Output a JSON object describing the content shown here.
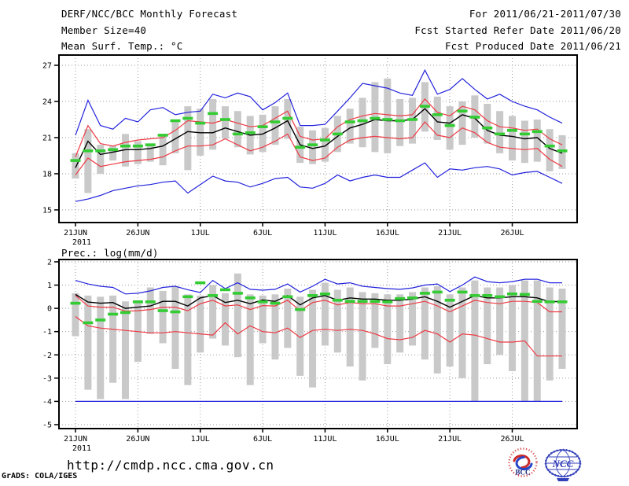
{
  "header": {
    "title": "DERF/NCC/BCC Monthly Forecast",
    "member_size": "Member Size=40",
    "for_range": "For 2011/06/21-2011/07/30",
    "fcst_started": "Fcst Started Refer Date 2011/06/20",
    "fcst_produced": "Fcst Produced Date 2011/06/21"
  },
  "footer": {
    "url": "http://cmdp.ncc.cma.gov.cn",
    "grads_credit": "GrADS: COLA/IGES",
    "logos": [
      {
        "name": "bcc-logo",
        "label": "BCC"
      },
      {
        "name": "ncc-logo",
        "label": "NCC"
      }
    ]
  },
  "colors": {
    "black": "#000000",
    "blue": "#2222dd",
    "red": "#ee3a44",
    "green": "#33cc33",
    "bar": "#c9c9c9",
    "grid": "#999999",
    "bcc_red": "#cc2a2a",
    "bcc_navy": "#1a2a80",
    "ncc_blue": "#3340bb"
  },
  "chart_data": [
    {
      "type": "line",
      "title": "Mean Surf. Temp.: °C",
      "year_label": "2011",
      "n_days": 40,
      "x_tick_labels": [
        "21JUN",
        "26JUN",
        "1JUL",
        "6JUL",
        "11JUL",
        "16JUL",
        "21JUL",
        "26JUL"
      ],
      "x_tick_days": [
        0,
        5,
        10,
        15,
        20,
        25,
        30,
        35
      ],
      "y_ticks": [
        27,
        24,
        21,
        18,
        15
      ],
      "ylim": [
        13.95,
        27.85
      ],
      "grid": true,
      "series": [
        {
          "name": "ensemble-max-line",
          "color": "blue",
          "values": [
            21.2,
            24.1,
            22.0,
            21.7,
            22.6,
            22.3,
            23.3,
            23.5,
            22.9,
            23.1,
            23.2,
            24.6,
            24.3,
            24.7,
            24.4,
            23.3,
            23.9,
            24.7,
            22.0,
            22.0,
            22.1,
            23.2,
            24.3,
            25.5,
            25.3,
            25.1,
            24.7,
            24.5,
            26.6,
            24.6,
            25.0,
            25.9,
            25.0,
            24.2,
            24.6,
            24.0,
            23.6,
            23.3,
            22.7,
            22.2
          ]
        },
        {
          "name": "upper-spread-line",
          "color": "red",
          "values": [
            19.4,
            22.0,
            20.5,
            20.3,
            20.6,
            20.8,
            20.9,
            21.0,
            21.6,
            22.4,
            22.3,
            22.2,
            22.5,
            22.2,
            21.9,
            22.0,
            22.6,
            23.2,
            21.1,
            20.8,
            20.9,
            21.9,
            22.5,
            22.8,
            23.0,
            22.9,
            22.8,
            22.9,
            24.2,
            23.1,
            22.8,
            23.6,
            23.3,
            22.4,
            21.9,
            21.8,
            21.6,
            21.7,
            20.9,
            20.4
          ]
        },
        {
          "name": "ensemble-mean-line",
          "color": "black",
          "values": [
            18.5,
            20.7,
            19.6,
            19.8,
            20.0,
            20.0,
            20.1,
            20.3,
            20.9,
            21.5,
            21.4,
            21.4,
            21.8,
            21.5,
            21.2,
            21.3,
            21.8,
            22.4,
            20.4,
            20.1,
            20.3,
            21.1,
            21.8,
            22.1,
            22.5,
            22.4,
            22.4,
            22.5,
            23.4,
            22.3,
            22.2,
            22.9,
            22.6,
            21.6,
            21.2,
            21.1,
            20.9,
            21.0,
            20.1,
            19.7
          ]
        },
        {
          "name": "lower-spread-line",
          "color": "red",
          "values": [
            17.9,
            19.3,
            18.6,
            18.8,
            19.0,
            19.1,
            19.2,
            19.4,
            19.9,
            20.3,
            20.3,
            20.4,
            20.9,
            20.4,
            19.9,
            20.2,
            20.7,
            21.3,
            19.4,
            19.1,
            19.3,
            20.2,
            20.8,
            21.0,
            21.1,
            21.0,
            20.9,
            21.0,
            22.3,
            21.2,
            21.0,
            21.8,
            21.4,
            20.6,
            20.2,
            20.1,
            20.0,
            20.1,
            19.2,
            18.6
          ]
        },
        {
          "name": "ensemble-min-line",
          "color": "blue",
          "values": [
            15.7,
            15.9,
            16.2,
            16.6,
            16.8,
            17.0,
            17.1,
            17.3,
            17.4,
            16.4,
            17.1,
            17.8,
            17.4,
            17.3,
            16.9,
            17.2,
            17.6,
            17.7,
            16.9,
            16.8,
            17.2,
            17.9,
            17.4,
            17.7,
            17.9,
            17.7,
            17.7,
            18.3,
            18.9,
            17.7,
            18.4,
            18.3,
            18.5,
            18.6,
            18.4,
            17.9,
            18.1,
            18.2,
            17.7,
            17.2
          ]
        }
      ],
      "bars": {
        "name": "member-spread-bars",
        "low": [
          17.6,
          16.4,
          18.0,
          19.1,
          18.6,
          18.8,
          19.0,
          18.7,
          19.7,
          18.3,
          19.5,
          20.0,
          20.9,
          20.2,
          19.6,
          19.8,
          20.4,
          20.9,
          18.9,
          18.8,
          19.0,
          19.8,
          20.5,
          20.2,
          19.8,
          19.7,
          20.3,
          20.5,
          21.5,
          20.8,
          20.0,
          20.4,
          21.0,
          20.5,
          19.7,
          19.1,
          18.9,
          19.0,
          18.2,
          18.4
        ],
        "high": [
          19.7,
          21.7,
          20.4,
          20.3,
          21.3,
          20.7,
          20.5,
          21.2,
          22.3,
          23.6,
          23.4,
          24.2,
          23.6,
          23.2,
          22.8,
          22.9,
          23.6,
          24.2,
          21.9,
          21.6,
          21.8,
          22.8,
          23.4,
          24.3,
          25.6,
          25.9,
          24.2,
          24.3,
          25.6,
          24.4,
          23.6,
          24.0,
          24.5,
          23.8,
          23.2,
          22.8,
          22.4,
          22.5,
          21.7,
          21.2
        ]
      },
      "markers": {
        "name": "green-dash-markers",
        "color": "green",
        "values": [
          19.1,
          19.9,
          19.9,
          20.0,
          20.3,
          20.3,
          20.4,
          21.2,
          22.4,
          22.6,
          22.2,
          23.0,
          22.5,
          21.3,
          21.4,
          21.9,
          22.3,
          22.6,
          20.2,
          20.4,
          20.8,
          21.3,
          22.3,
          22.4,
          22.6,
          22.5,
          22.4,
          22.5,
          23.6,
          22.9,
          22.0,
          23.2,
          22.7,
          21.8,
          21.3,
          21.6,
          21.3,
          21.5,
          20.3,
          19.9
        ]
      }
    },
    {
      "type": "line",
      "title": "Prec.: log(mm/d)",
      "year_label": "2011",
      "n_days": 40,
      "x_tick_labels": [
        "21JUN",
        "26JUN",
        "1JUL",
        "6JUL",
        "11JUL",
        "16JUL",
        "21JUL",
        "26JUL"
      ],
      "x_tick_days": [
        0,
        5,
        10,
        15,
        20,
        25,
        30,
        35
      ],
      "y_ticks": [
        2,
        1,
        0,
        -1,
        -2,
        -3,
        -4,
        -5
      ],
      "ylim": [
        -5.17,
        2.1
      ],
      "grid": true,
      "series": [
        {
          "name": "ensemble-max-line",
          "color": "blue",
          "values": [
            1.2,
            1.05,
            0.95,
            0.9,
            0.62,
            0.65,
            0.75,
            0.9,
            0.95,
            0.8,
            0.68,
            1.2,
            0.85,
            1.1,
            0.82,
            0.78,
            0.82,
            1.05,
            0.7,
            0.95,
            1.25,
            1.05,
            1.1,
            0.95,
            0.9,
            0.85,
            0.82,
            0.88,
            1.0,
            1.05,
            0.72,
            1.0,
            1.35,
            1.15,
            1.1,
            1.15,
            1.25,
            1.25,
            1.1,
            1.1
          ]
        },
        {
          "name": "upper-spread-line",
          "color": "red",
          "values": [
            0.55,
            0.1,
            0.05,
            0.05,
            -0.12,
            -0.1,
            -0.05,
            0.05,
            0.05,
            -0.1,
            0.2,
            0.35,
            0.1,
            0.15,
            -0.05,
            0.12,
            0.1,
            0.35,
            -0.1,
            0.25,
            0.35,
            0.15,
            0.25,
            0.2,
            0.2,
            0.1,
            0.1,
            0.2,
            0.3,
            0.1,
            -0.15,
            0.1,
            0.35,
            0.25,
            0.2,
            0.3,
            0.3,
            0.25,
            -0.15,
            -0.15
          ]
        },
        {
          "name": "ensemble-mean-line",
          "color": "black",
          "values": [
            0.6,
            0.27,
            0.22,
            0.25,
            0.0,
            0.05,
            0.1,
            0.3,
            0.3,
            0.1,
            0.45,
            0.55,
            0.25,
            0.35,
            0.2,
            0.36,
            0.3,
            0.55,
            0.15,
            0.45,
            0.55,
            0.35,
            0.45,
            0.4,
            0.4,
            0.35,
            0.35,
            0.4,
            0.5,
            0.3,
            0.05,
            0.3,
            0.55,
            0.45,
            0.45,
            0.5,
            0.5,
            0.45,
            0.28,
            0.3
          ]
        },
        {
          "name": "lower-spread-line",
          "color": "red",
          "values": [
            -0.35,
            -0.75,
            -0.85,
            -0.9,
            -0.95,
            -1.0,
            -1.05,
            -1.05,
            -1.0,
            -1.05,
            -1.1,
            -1.15,
            -0.62,
            -1.1,
            -0.75,
            -1.0,
            -1.05,
            -0.85,
            -1.25,
            -0.95,
            -0.9,
            -0.95,
            -0.9,
            -0.95,
            -1.1,
            -1.3,
            -1.35,
            -1.25,
            -0.95,
            -1.1,
            -1.45,
            -1.1,
            -1.15,
            -1.3,
            -1.45,
            -1.45,
            -1.4,
            -2.05,
            -2.05,
            -2.05
          ]
        },
        {
          "name": "ensemble-min-line",
          "color": "blue",
          "values": [
            -4.0,
            -4.0,
            -4.0,
            -4.0,
            -4.0,
            -4.0,
            -4.0,
            -4.0,
            -4.0,
            -4.0,
            -4.0,
            -4.0,
            -4.0,
            -4.0,
            -4.0,
            -4.0,
            -4.0,
            -4.0,
            -4.0,
            -4.0,
            -4.0,
            -4.0,
            -4.0,
            -4.0,
            -4.0,
            -4.0,
            -4.0,
            -4.0,
            -4.0,
            -4.0,
            -4.0,
            -4.0,
            -4.0,
            -4.0,
            -4.0,
            -4.0,
            -4.0,
            -4.0,
            -4.0,
            -4.0
          ]
        }
      ],
      "bars": {
        "name": "member-spread-bars",
        "low": [
          -1.2,
          -3.5,
          -3.9,
          -3.2,
          -3.9,
          -2.3,
          -1.1,
          -1.5,
          -2.6,
          -3.3,
          -1.9,
          -1.3,
          -1.6,
          -2.1,
          -3.3,
          -1.5,
          -2.2,
          -1.7,
          -2.9,
          -3.4,
          -1.6,
          -1.9,
          -2.5,
          -3.1,
          -1.7,
          -2.4,
          -1.9,
          -1.6,
          -2.2,
          -2.8,
          -2.5,
          -3.0,
          -4.0,
          -2.4,
          -2.0,
          -2.7,
          -4.0,
          -4.0,
          -3.1,
          -2.6
        ],
        "high": [
          0.65,
          0.55,
          0.5,
          0.55,
          0.3,
          0.35,
          0.9,
          0.75,
          0.95,
          0.6,
          0.55,
          1.0,
          0.65,
          1.5,
          0.6,
          0.55,
          0.6,
          0.85,
          0.5,
          0.8,
          1.1,
          0.8,
          0.9,
          0.7,
          0.65,
          0.6,
          0.6,
          0.7,
          0.9,
          0.95,
          0.6,
          0.9,
          1.2,
          0.9,
          0.9,
          1.0,
          1.2,
          1.2,
          0.9,
          0.85
        ]
      },
      "markers": {
        "name": "green-dash-markers",
        "color": "green",
        "values": [
          0.22,
          -0.62,
          -0.5,
          -0.25,
          -0.18,
          0.28,
          0.28,
          -0.1,
          -0.15,
          0.5,
          1.1,
          0.55,
          0.8,
          0.65,
          0.45,
          0.28,
          0.22,
          0.5,
          -0.05,
          0.55,
          0.62,
          0.35,
          0.3,
          0.3,
          0.3,
          0.28,
          0.42,
          0.45,
          0.65,
          0.7,
          0.35,
          0.7,
          0.55,
          0.55,
          0.5,
          0.62,
          0.6,
          0.3,
          0.28,
          0.28
        ]
      }
    }
  ]
}
